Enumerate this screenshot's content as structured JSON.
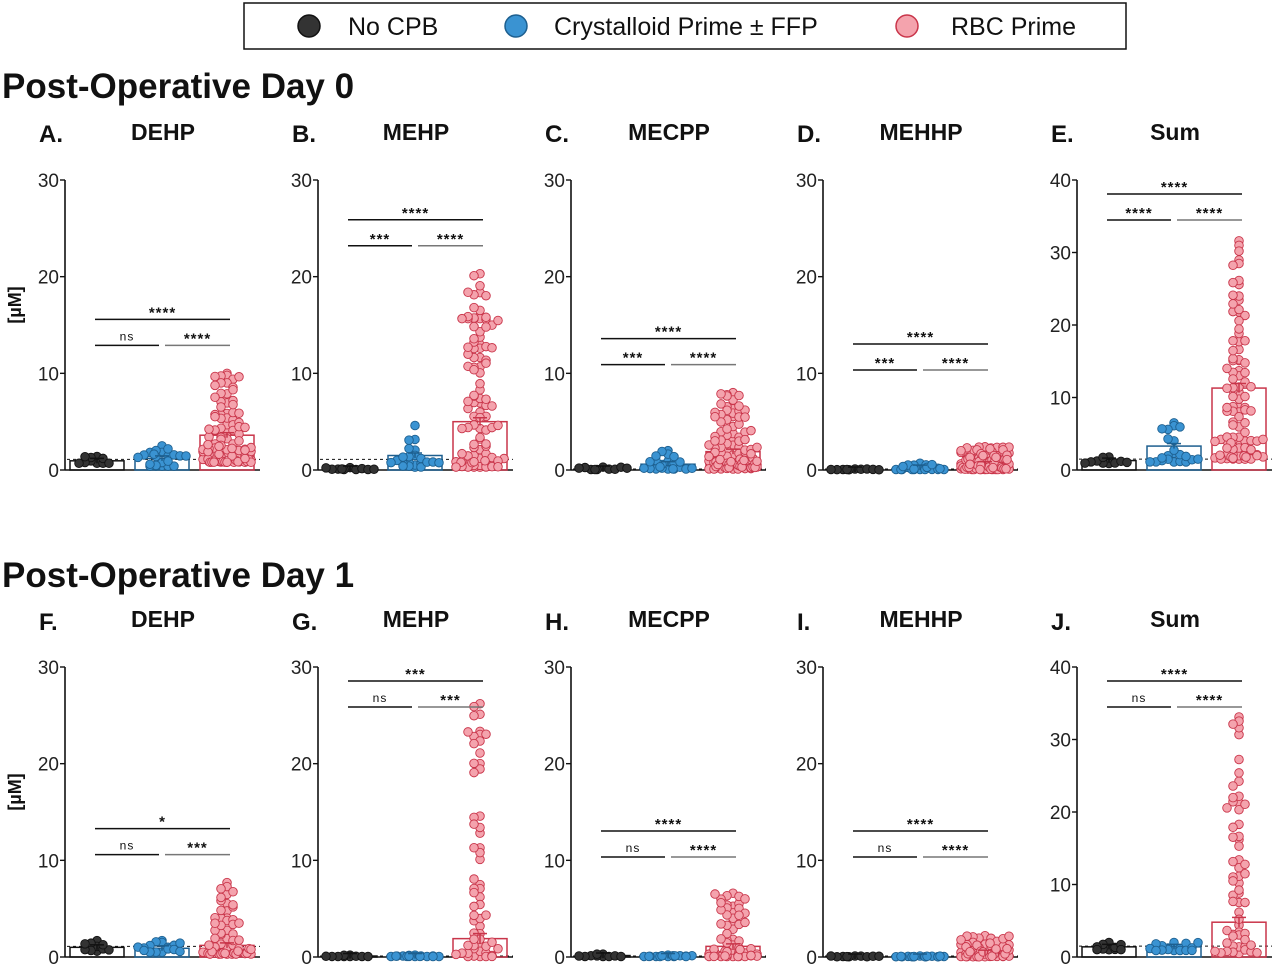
{
  "legend": {
    "items": [
      {
        "label": "No CPB",
        "fill": "#333333",
        "stroke": "#111111"
      },
      {
        "label": "Crystalloid Prime ± FFP",
        "fill": "#3a93d2",
        "stroke": "#1d5f8f"
      },
      {
        "label": "RBC Prime",
        "fill": "#f4a3ad",
        "stroke": "#c9354a"
      }
    ]
  },
  "sections": [
    {
      "title": "Post-Operative Day 0"
    },
    {
      "title": "Post-Operative Day 1"
    }
  ],
  "ylabel": "[µM]",
  "group_colors": {
    "no_cpb": {
      "fill": "#333333",
      "stroke": "#111111"
    },
    "crystalloid": {
      "fill": "#3a93d2",
      "stroke": "#1d5f8f"
    },
    "rbc": {
      "fill": "#f4a3ad",
      "stroke": "#c9354a"
    }
  },
  "chart_data": [
    {
      "letter": "A.",
      "title": "DEHP",
      "type": "scatter",
      "ylim": [
        0,
        30
      ],
      "yticks": [
        0,
        10,
        20,
        30
      ],
      "lod": 1.1,
      "groups": [
        {
          "mean": 0.95,
          "n": 10,
          "min": 0.7,
          "max": 1.4
        },
        {
          "mean": 1.2,
          "n": 22,
          "min": 0.4,
          "max": 2.5
        },
        {
          "mean": 3.6,
          "n": 100,
          "min": 0.8,
          "max": 10.0
        }
      ],
      "comparisons": [
        {
          "pair": "1-2",
          "label": "ns"
        },
        {
          "pair": "2-3",
          "label": "****"
        },
        {
          "pair": "1-3",
          "label": "****"
        }
      ]
    },
    {
      "letter": "B.",
      "title": "MEHP",
      "type": "scatter",
      "ylim": [
        0,
        30
      ],
      "yticks": [
        0,
        10,
        20,
        30
      ],
      "lod": 1.1,
      "groups": [
        {
          "mean": 0.15,
          "n": 10,
          "min": 0.05,
          "max": 0.25
        },
        {
          "mean": 1.5,
          "n": 22,
          "min": 0.3,
          "max": 4.6
        },
        {
          "mean": 5.0,
          "n": 100,
          "min": 0.3,
          "max": 20.3
        }
      ],
      "comparisons": [
        {
          "pair": "1-2",
          "label": "***"
        },
        {
          "pair": "2-3",
          "label": "****"
        },
        {
          "pair": "1-3",
          "label": "****"
        }
      ]
    },
    {
      "letter": "C.",
      "title": "MECPP",
      "type": "scatter",
      "ylim": [
        0,
        30
      ],
      "yticks": [
        0,
        10,
        20,
        30
      ],
      "lod": 0.1,
      "groups": [
        {
          "mean": 0.15,
          "n": 10,
          "min": 0.05,
          "max": 0.3
        },
        {
          "mean": 0.6,
          "n": 22,
          "min": 0.1,
          "max": 2.0
        },
        {
          "mean": 1.9,
          "n": 100,
          "min": 0.1,
          "max": 8.0
        }
      ],
      "comparisons": [
        {
          "pair": "1-2",
          "label": "***"
        },
        {
          "pair": "2-3",
          "label": "****"
        },
        {
          "pair": "1-3",
          "label": "****"
        }
      ]
    },
    {
      "letter": "D.",
      "title": "MEHHP",
      "type": "scatter",
      "ylim": [
        0,
        30
      ],
      "yticks": [
        0,
        10,
        20,
        30
      ],
      "lod": 0.1,
      "groups": [
        {
          "mean": 0.05,
          "n": 10,
          "min": 0.02,
          "max": 0.1
        },
        {
          "mean": 0.25,
          "n": 22,
          "min": 0.05,
          "max": 0.7
        },
        {
          "mean": 0.6,
          "n": 100,
          "min": 0.05,
          "max": 2.4
        }
      ],
      "comparisons": [
        {
          "pair": "1-2",
          "label": "***"
        },
        {
          "pair": "2-3",
          "label": "****"
        },
        {
          "pair": "1-3",
          "label": "****"
        }
      ]
    },
    {
      "letter": "E.",
      "title": "Sum",
      "type": "scatter",
      "ylim": [
        0,
        40
      ],
      "yticks": [
        0,
        10,
        20,
        30,
        40
      ],
      "lod": 1.5,
      "groups": [
        {
          "mean": 1.3,
          "n": 10,
          "min": 0.9,
          "max": 1.8
        },
        {
          "mean": 3.3,
          "n": 22,
          "min": 1.1,
          "max": 6.5
        },
        {
          "mean": 11.3,
          "n": 100,
          "min": 1.5,
          "max": 31.6
        }
      ],
      "comparisons": [
        {
          "pair": "1-2",
          "label": "****"
        },
        {
          "pair": "2-3",
          "label": "****"
        },
        {
          "pair": "1-3",
          "label": "****"
        }
      ]
    },
    {
      "letter": "F.",
      "title": "DEHP",
      "type": "scatter",
      "ylim": [
        0,
        30
      ],
      "yticks": [
        0,
        10,
        20,
        30
      ],
      "lod": 1.1,
      "groups": [
        {
          "mean": 1.0,
          "n": 10,
          "min": 0.6,
          "max": 1.7
        },
        {
          "mean": 0.9,
          "n": 16,
          "min": 0.5,
          "max": 1.7
        },
        {
          "mean": 1.2,
          "n": 60,
          "min": 0.3,
          "max": 7.7
        }
      ],
      "comparisons": [
        {
          "pair": "1-2",
          "label": "ns"
        },
        {
          "pair": "2-3",
          "label": "***"
        },
        {
          "pair": "1-3",
          "label": "*"
        }
      ]
    },
    {
      "letter": "G.",
      "title": "MEHP",
      "type": "scatter",
      "ylim": [
        0,
        30
      ],
      "yticks": [
        0,
        10,
        20,
        30
      ],
      "lod": 0.1,
      "groups": [
        {
          "mean": 0.1,
          "n": 10,
          "min": 0.05,
          "max": 0.2
        },
        {
          "mean": 0.1,
          "n": 16,
          "min": 0.05,
          "max": 0.2
        },
        {
          "mean": 1.9,
          "n": 60,
          "min": 0.05,
          "max": 26.2
        }
      ],
      "comparisons": [
        {
          "pair": "1-2",
          "label": "ns"
        },
        {
          "pair": "2-3",
          "label": "***"
        },
        {
          "pair": "1-3",
          "label": "***"
        }
      ]
    },
    {
      "letter": "H.",
      "title": "MECPP",
      "type": "scatter",
      "ylim": [
        0,
        30
      ],
      "yticks": [
        0,
        10,
        20,
        30
      ],
      "lod": 0.1,
      "groups": [
        {
          "mean": 0.15,
          "n": 10,
          "min": 0.05,
          "max": 0.3
        },
        {
          "mean": 0.1,
          "n": 16,
          "min": 0.05,
          "max": 0.2
        },
        {
          "mean": 1.1,
          "n": 60,
          "min": 0.05,
          "max": 6.6
        }
      ],
      "comparisons": [
        {
          "pair": "1-2",
          "label": "ns"
        },
        {
          "pair": "2-3",
          "label": "****"
        },
        {
          "pair": "1-3",
          "label": "****"
        }
      ]
    },
    {
      "letter": "I.",
      "title": "MEHHP",
      "type": "scatter",
      "ylim": [
        0,
        30
      ],
      "yticks": [
        0,
        10,
        20,
        30
      ],
      "lod": 0.1,
      "groups": [
        {
          "mean": 0.05,
          "n": 10,
          "min": 0.02,
          "max": 0.1
        },
        {
          "mean": 0.05,
          "n": 16,
          "min": 0.02,
          "max": 0.1
        },
        {
          "mean": 0.45,
          "n": 60,
          "min": 0.02,
          "max": 2.2
        }
      ],
      "comparisons": [
        {
          "pair": "1-2",
          "label": "ns"
        },
        {
          "pair": "2-3",
          "label": "****"
        },
        {
          "pair": "1-3",
          "label": "****"
        }
      ]
    },
    {
      "letter": "J.",
      "title": "Sum",
      "type": "scatter",
      "ylim": [
        0,
        40
      ],
      "yticks": [
        0,
        10,
        20,
        30,
        40
      ],
      "lod": 1.5,
      "groups": [
        {
          "mean": 1.4,
          "n": 10,
          "min": 1.0,
          "max": 2.0
        },
        {
          "mean": 1.4,
          "n": 16,
          "min": 0.9,
          "max": 2.0
        },
        {
          "mean": 4.8,
          "n": 60,
          "min": 0.5,
          "max": 33.1
        }
      ],
      "comparisons": [
        {
          "pair": "1-2",
          "label": "ns"
        },
        {
          "pair": "2-3",
          "label": "****"
        },
        {
          "pair": "1-3",
          "label": "****"
        }
      ]
    }
  ]
}
